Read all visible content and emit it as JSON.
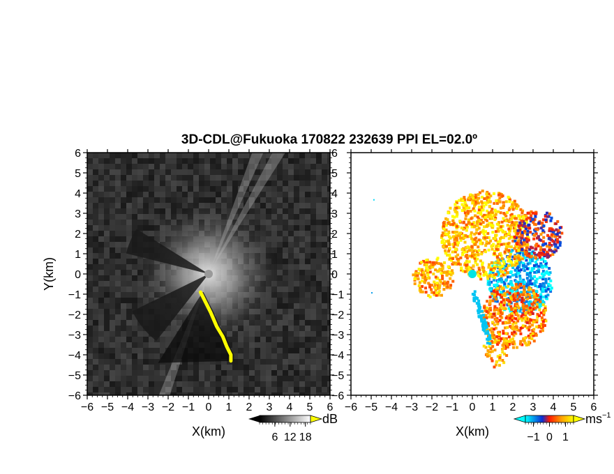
{
  "title": "3D-CDL@Fukuoka 170822 232639 PPI EL=02.0º",
  "chart_data": [
    {
      "type": "heatmap",
      "panel": "left",
      "quantity": "reflectivity-like intensity",
      "xlabel": "X(km)",
      "ylabel": "Y(km)",
      "xlim": [
        -6,
        6
      ],
      "ylim": [
        -6,
        6
      ],
      "x_ticks": [
        "-6",
        "-5",
        "-4",
        "-3",
        "-2",
        "-1",
        "0",
        "1",
        "2",
        "3",
        "4",
        "5",
        "6"
      ],
      "y_ticks": [
        "-6",
        "-5",
        "-4",
        "-3",
        "-2",
        "-1",
        "0",
        "1",
        "2",
        "3",
        "4",
        "5",
        "6"
      ],
      "colorbar": {
        "unit": "dB",
        "tick_labels": [
          "6",
          "12",
          "18"
        ],
        "tick_values": [
          6,
          12,
          18
        ],
        "range": [
          0,
          20
        ],
        "colors": [
          "#000000",
          "#ffffff"
        ],
        "overflow_color": "#ffff00"
      },
      "features": {
        "background_color": "#2e2e2e",
        "bright_core_center": [
          0,
          0
        ],
        "bright_core_radius_km": 3.5,
        "shadow_sectors_deg": [
          [
            148,
            166
          ],
          [
            206,
            232
          ]
        ],
        "bright_spokes_deg": [
          60,
          68,
          250
        ],
        "yellow_band_points": [
          [
            -0.4,
            -0.9
          ],
          [
            -0.2,
            -1.3
          ],
          [
            0.1,
            -1.9
          ],
          [
            0.4,
            -2.6
          ],
          [
            0.7,
            -3.1
          ],
          [
            0.9,
            -3.6
          ],
          [
            1.1,
            -4.0
          ],
          [
            1.1,
            -4.3
          ]
        ]
      }
    },
    {
      "type": "scatter",
      "panel": "right",
      "quantity": "radial velocity",
      "xlabel": "X(km)",
      "ylabel": "",
      "xlim": [
        -6,
        6
      ],
      "ylim": [
        -6,
        6
      ],
      "x_ticks": [
        "-6",
        "-5",
        "-4",
        "-3",
        "-2",
        "-1",
        "0",
        "1",
        "2",
        "3",
        "4",
        "5",
        "6"
      ],
      "y_ticks": [
        "-6",
        "-5",
        "-4",
        "-3",
        "-2",
        "-1",
        "0",
        "1",
        "2",
        "3",
        "4",
        "5",
        "6"
      ],
      "colorbar": {
        "unit": "ms",
        "unit_exponent": "−1",
        "tick_labels": [
          "−1",
          "0",
          "1"
        ],
        "tick_values": [
          -1,
          0,
          1
        ],
        "range": [
          -1.5,
          1.5
        ],
        "stops": [
          "#00ffff",
          "#0a2fd6",
          "#ff1a00",
          "#ffa000",
          "#ffff00"
        ]
      },
      "regions": [
        {
          "name": "approaching-east",
          "center": [
            2.3,
            -0.3
          ],
          "radius_km": 1.6,
          "velocity": -1.2
        },
        {
          "name": "receding-north",
          "center": [
            0.6,
            2.0
          ],
          "radius_km": 2.2,
          "velocity": 1.0
        },
        {
          "name": "receding-south",
          "center": [
            2.0,
            -2.0
          ],
          "radius_km": 1.6,
          "velocity": 0.6
        },
        {
          "name": "receding-west",
          "center": [
            -2.0,
            -0.1
          ],
          "radius_km": 1.0,
          "velocity": 0.9
        },
        {
          "name": "mixed-northeast",
          "center": [
            3.2,
            2.0
          ],
          "radius_km": 1.2,
          "velocity": 0.0
        },
        {
          "name": "strong-south-spur",
          "center": [
            1.1,
            -3.6
          ],
          "radius_km": 0.6,
          "velocity": 0.7
        }
      ]
    }
  ]
}
